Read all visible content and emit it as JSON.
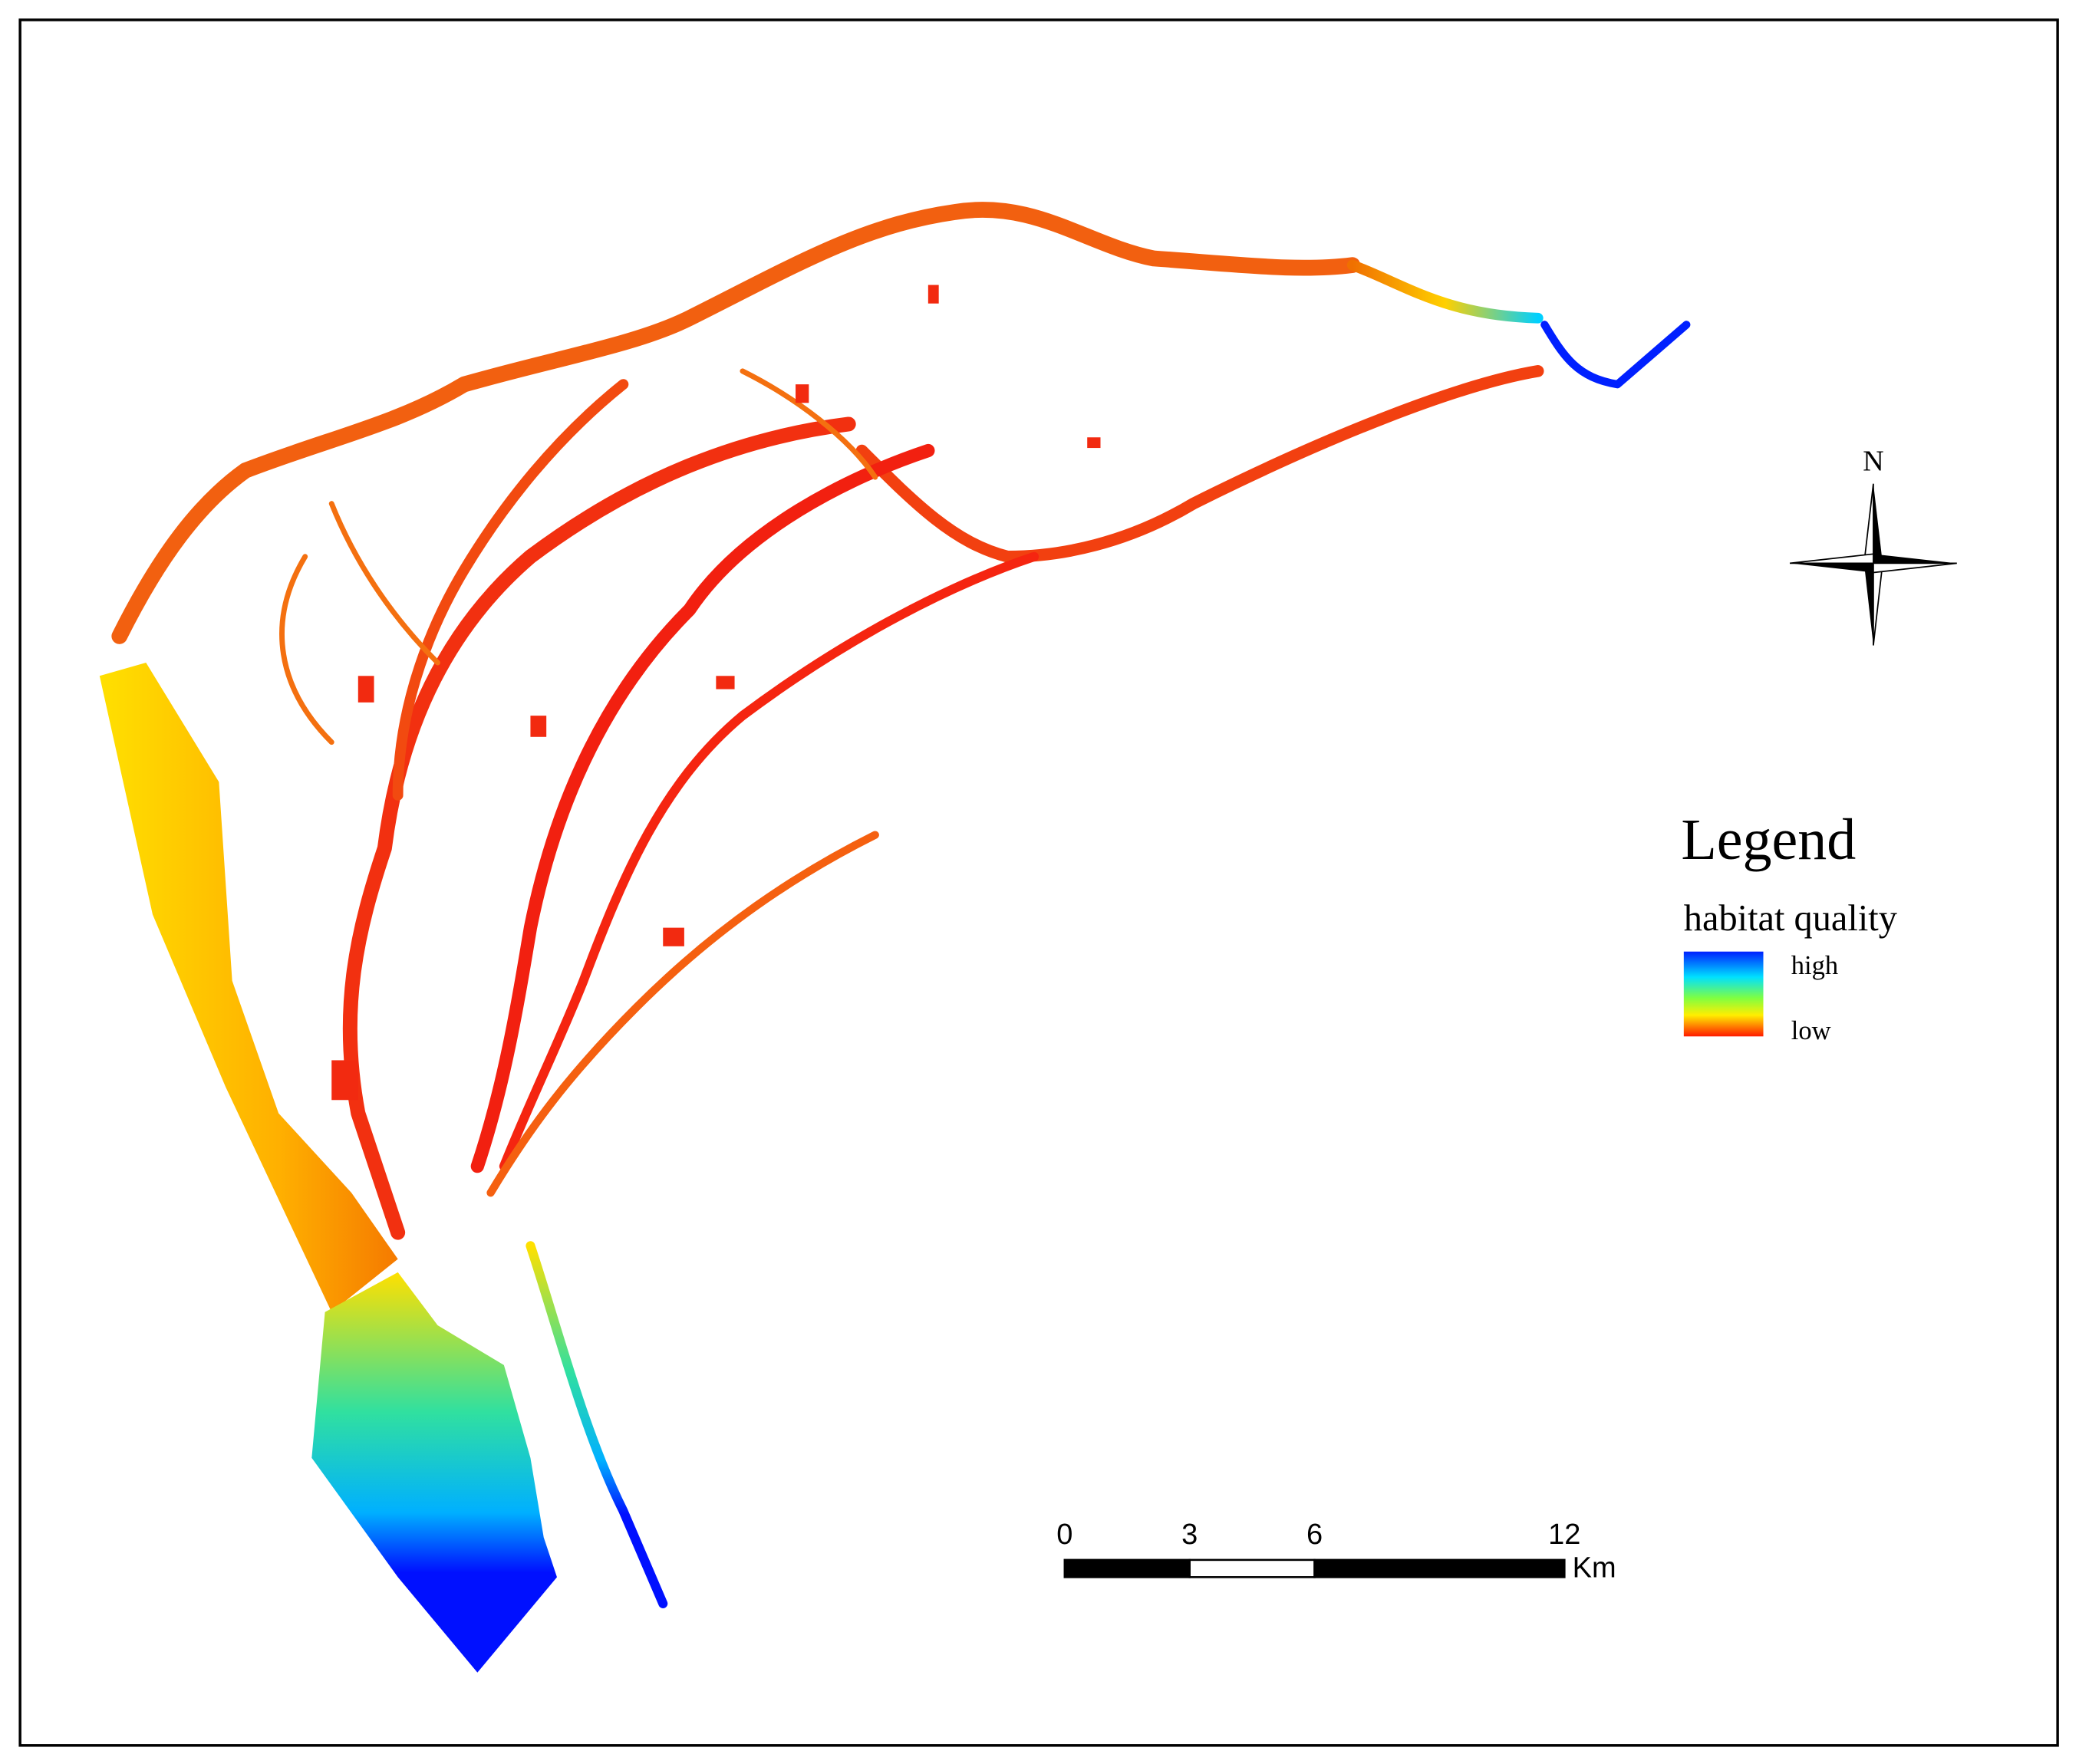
{
  "legend": {
    "title": "Legend",
    "subtitle": "habitat quality",
    "high": "high",
    "low": "low"
  },
  "north_arrow": {
    "label": "N"
  },
  "scale_bar": {
    "ticks": [
      0,
      3,
      6,
      12
    ],
    "unit": "Km"
  }
}
